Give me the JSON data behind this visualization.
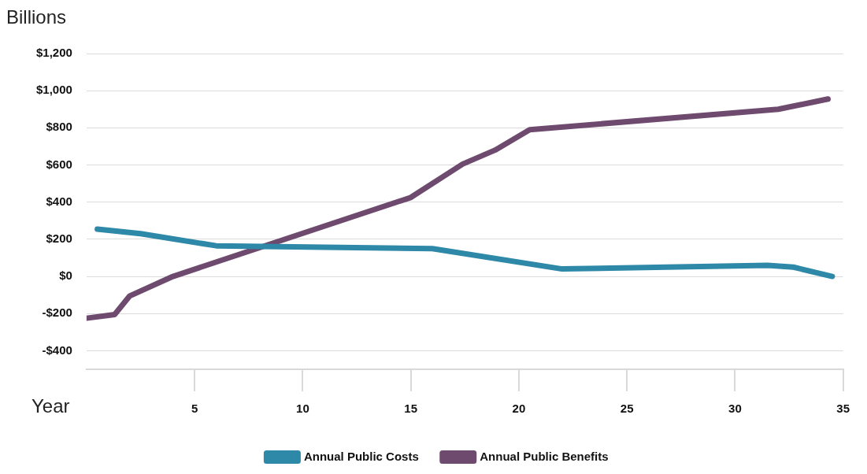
{
  "chart_data": {
    "type": "line",
    "ylabel": "Billions",
    "xlabel": "Year",
    "xlim": [
      0,
      35
    ],
    "xticks": [
      5,
      10,
      15,
      20,
      25,
      30,
      35
    ],
    "ylim": [
      -500,
      1200
    ],
    "yticks": [
      {
        "value": -400,
        "label": "-$400"
      },
      {
        "value": -200,
        "label": "-$200"
      },
      {
        "value": 0,
        "label": "$0"
      },
      {
        "value": 200,
        "label": "$200"
      },
      {
        "value": 400,
        "label": "$400"
      },
      {
        "value": 600,
        "label": "$600"
      },
      {
        "value": 800,
        "label": "$800"
      },
      {
        "value": 1000,
        "label": "$1,000"
      },
      {
        "value": 1200,
        "label": "$1,200"
      }
    ],
    "grid": "y",
    "legend": "bottom",
    "marker": "none",
    "line_style": "solid",
    "series": [
      {
        "name": "Annual Public Costs",
        "color": "#2e88a8",
        "x": [
          0.5,
          2.5,
          6,
          16,
          22,
          31.5,
          32.7,
          34.5
        ],
        "values": [
          255,
          230,
          165,
          150,
          40,
          60,
          50,
          0
        ]
      },
      {
        "name": "Annual Public Benefits",
        "color": "#6e4a6e",
        "x": [
          0,
          1.3,
          2,
          4,
          15,
          17.4,
          18.9,
          20.5,
          32,
          34.3
        ],
        "values": [
          -225,
          -205,
          -105,
          0,
          425,
          605,
          680,
          790,
          900,
          955
        ]
      }
    ]
  }
}
